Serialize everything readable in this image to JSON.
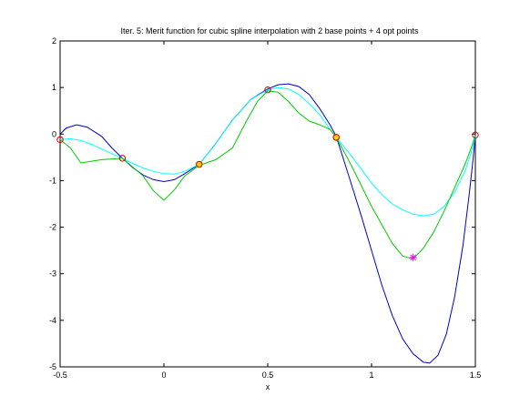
{
  "chart_data": {
    "type": "line",
    "title": "Iter. 5: Merit function for cubic spline interpolation with 2 base points + 4 opt points",
    "xlabel": "x",
    "ylabel": "",
    "xlim": [
      -0.5,
      1.5
    ],
    "ylim": [
      -5,
      2
    ],
    "xticks": [
      -0.5,
      0,
      0.5,
      1,
      1.5
    ],
    "xtick_labels": [
      "-0.5",
      "0",
      "0.5",
      "1",
      "1.5"
    ],
    "yticks": [
      -5,
      -4,
      -3,
      -2,
      -1,
      0,
      1,
      2
    ],
    "ytick_labels": [
      "-5",
      "-4",
      "-3",
      "-2",
      "-1",
      "0",
      "1",
      "2"
    ],
    "grid": false,
    "series": [
      {
        "color": "#0000cc",
        "style": "line",
        "points": [
          [
            -0.5,
            0.0
          ],
          [
            -0.47,
            0.13
          ],
          [
            -0.42,
            0.2
          ],
          [
            -0.37,
            0.15
          ],
          [
            -0.3,
            -0.05
          ],
          [
            -0.25,
            -0.3
          ],
          [
            -0.2,
            -0.52
          ],
          [
            -0.15,
            -0.72
          ],
          [
            -0.1,
            -0.88
          ],
          [
            -0.05,
            -0.98
          ],
          [
            0.0,
            -1.02
          ],
          [
            0.05,
            -0.98
          ],
          [
            0.1,
            -0.85
          ],
          [
            0.17,
            -0.65
          ],
          [
            0.25,
            -0.2
          ],
          [
            0.33,
            0.3
          ],
          [
            0.42,
            0.75
          ],
          [
            0.5,
            0.97
          ],
          [
            0.55,
            1.06
          ],
          [
            0.6,
            1.08
          ],
          [
            0.65,
            1.02
          ],
          [
            0.7,
            0.85
          ],
          [
            0.75,
            0.55
          ],
          [
            0.8,
            0.2
          ],
          [
            0.83,
            -0.05
          ],
          [
            0.88,
            -0.75
          ],
          [
            0.95,
            -1.75
          ],
          [
            1.0,
            -2.5
          ],
          [
            1.05,
            -3.25
          ],
          [
            1.1,
            -3.9
          ],
          [
            1.15,
            -4.4
          ],
          [
            1.2,
            -4.72
          ],
          [
            1.25,
            -4.9
          ],
          [
            1.28,
            -4.92
          ],
          [
            1.32,
            -4.75
          ],
          [
            1.36,
            -4.3
          ],
          [
            1.4,
            -3.5
          ],
          [
            1.44,
            -2.4
          ],
          [
            1.47,
            -1.3
          ],
          [
            1.49,
            -0.5
          ],
          [
            1.5,
            0.0
          ]
        ]
      },
      {
        "color": "#00ffff",
        "style": "line",
        "points": [
          [
            -0.5,
            -0.12
          ],
          [
            -0.45,
            -0.1
          ],
          [
            -0.4,
            -0.14
          ],
          [
            -0.35,
            -0.22
          ],
          [
            -0.3,
            -0.32
          ],
          [
            -0.25,
            -0.42
          ],
          [
            -0.2,
            -0.52
          ],
          [
            -0.15,
            -0.63
          ],
          [
            -0.1,
            -0.73
          ],
          [
            -0.05,
            -0.8
          ],
          [
            0.0,
            -0.85
          ],
          [
            0.05,
            -0.86
          ],
          [
            0.1,
            -0.8
          ],
          [
            0.17,
            -0.65
          ],
          [
            0.25,
            -0.2
          ],
          [
            0.33,
            0.3
          ],
          [
            0.42,
            0.75
          ],
          [
            0.5,
            0.95
          ],
          [
            0.55,
            1.0
          ],
          [
            0.6,
            0.97
          ],
          [
            0.65,
            0.85
          ],
          [
            0.7,
            0.65
          ],
          [
            0.75,
            0.42
          ],
          [
            0.8,
            0.1
          ],
          [
            0.83,
            -0.07
          ],
          [
            0.9,
            -0.45
          ],
          [
            0.95,
            -0.75
          ],
          [
            1.0,
            -1.05
          ],
          [
            1.05,
            -1.3
          ],
          [
            1.1,
            -1.5
          ],
          [
            1.15,
            -1.63
          ],
          [
            1.2,
            -1.72
          ],
          [
            1.25,
            -1.76
          ],
          [
            1.3,
            -1.72
          ],
          [
            1.35,
            -1.55
          ],
          [
            1.4,
            -1.25
          ],
          [
            1.45,
            -0.8
          ],
          [
            1.48,
            -0.4
          ],
          [
            1.5,
            -0.05
          ]
        ]
      },
      {
        "color": "#00cc00",
        "style": "line",
        "points": [
          [
            -0.5,
            -0.12
          ],
          [
            -0.45,
            -0.3
          ],
          [
            -0.4,
            -0.62
          ],
          [
            -0.3,
            -0.55
          ],
          [
            -0.2,
            -0.52
          ],
          [
            -0.1,
            -0.9
          ],
          [
            -0.05,
            -1.22
          ],
          [
            0.0,
            -1.42
          ],
          [
            0.05,
            -1.2
          ],
          [
            0.1,
            -0.9
          ],
          [
            0.17,
            -0.67
          ],
          [
            0.25,
            -0.55
          ],
          [
            0.33,
            -0.3
          ],
          [
            0.4,
            0.3
          ],
          [
            0.45,
            0.7
          ],
          [
            0.5,
            0.93
          ],
          [
            0.55,
            0.9
          ],
          [
            0.6,
            0.7
          ],
          [
            0.65,
            0.45
          ],
          [
            0.7,
            0.28
          ],
          [
            0.75,
            0.2
          ],
          [
            0.8,
            0.1
          ],
          [
            0.83,
            -0.07
          ],
          [
            0.9,
            -0.65
          ],
          [
            0.95,
            -1.1
          ],
          [
            1.0,
            -1.55
          ],
          [
            1.05,
            -1.95
          ],
          [
            1.1,
            -2.35
          ],
          [
            1.15,
            -2.62
          ],
          [
            1.2,
            -2.68
          ],
          [
            1.25,
            -2.45
          ],
          [
            1.3,
            -2.1
          ],
          [
            1.35,
            -1.65
          ],
          [
            1.4,
            -1.15
          ],
          [
            1.45,
            -0.65
          ],
          [
            1.48,
            -0.3
          ],
          [
            1.5,
            -0.02
          ]
        ]
      }
    ],
    "base_points": [
      [
        -0.5,
        -0.12
      ],
      [
        -0.2,
        -0.52
      ],
      [
        0.17,
        -0.65
      ],
      [
        0.5,
        0.95
      ],
      [
        0.83,
        -0.07
      ],
      [
        1.5,
        -0.02
      ]
    ],
    "base_point_color": "#cc0000",
    "opt_points": [
      [
        0.17,
        -0.65
      ],
      [
        0.83,
        -0.07
      ]
    ],
    "opt_point_color": "#ffcc00",
    "new_point": [
      1.2,
      -2.65
    ],
    "new_point_color": "#ff00ff"
  }
}
